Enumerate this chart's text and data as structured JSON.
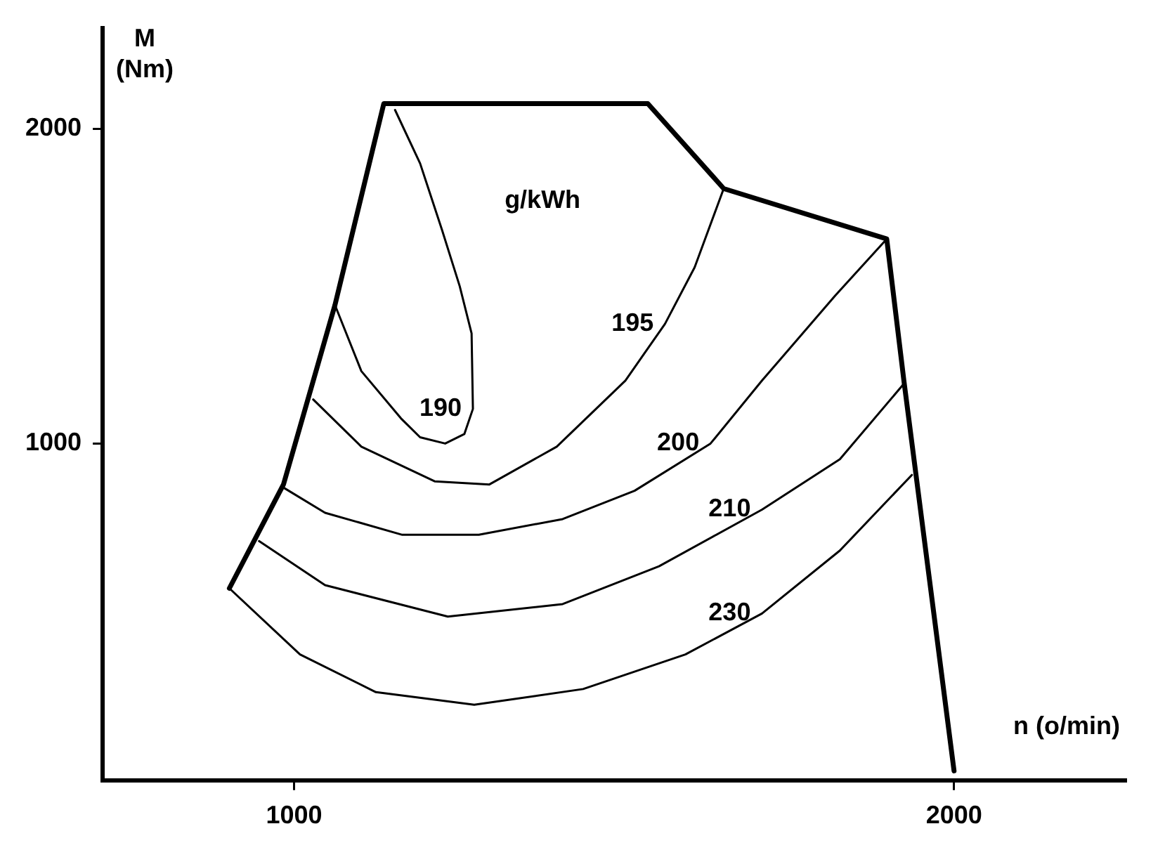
{
  "chart_data": {
    "type": "line",
    "xlabel": "n (o/min)",
    "ylabel": "M (Nm)",
    "xlim": [
      710,
      2260
    ],
    "ylim": [
      -70,
      2320
    ],
    "xticks": [
      1000,
      2000
    ],
    "yticks": [
      1000,
      2000
    ],
    "grid": false,
    "legend": false,
    "marker": "none",
    "line_style": "solid",
    "series": [
      {
        "color": "#000000",
        "x": [
          902,
          984,
          1062,
          1136,
          1536,
          1651,
          1898,
          1924,
          2000
        ],
        "values": [
          540,
          870,
          1440,
          2080,
          2080,
          1810,
          1650,
          1200,
          -40
        ]
      },
      {
        "name": "190",
        "color": "#000000",
        "x": [
          1153,
          1191,
          1224,
          1251,
          1269,
          1271,
          1258,
          1229,
          1191,
          1162,
          1102,
          1062
        ],
        "values": [
          2060,
          1890,
          1680,
          1500,
          1350,
          1110,
          1030,
          1000,
          1020,
          1080,
          1230,
          1440
        ]
      },
      {
        "name": "195",
        "color": "#000000",
        "x": [
          1029,
          1102,
          1213,
          1296,
          1398,
          1502,
          1562,
          1607,
          1651
        ],
        "values": [
          1140,
          990,
          880,
          870,
          990,
          1200,
          1380,
          1560,
          1810
        ]
      },
      {
        "name": "200",
        "color": "#000000",
        "x": [
          984,
          1047,
          1164,
          1280,
          1407,
          1516,
          1631,
          1709,
          1820,
          1898
        ],
        "values": [
          860,
          780,
          710,
          710,
          760,
          850,
          1000,
          1200,
          1470,
          1650
        ]
      },
      {
        "name": "210",
        "color": "#000000",
        "x": [
          947,
          1047,
          1233,
          1407,
          1553,
          1709,
          1827,
          1924
        ],
        "values": [
          690,
          550,
          450,
          490,
          610,
          790,
          950,
          1190
        ]
      },
      {
        "name": "230",
        "color": "#000000",
        "x": [
          902,
          1009,
          1124,
          1273,
          1438,
          1593,
          1709,
          1827,
          1936
        ],
        "values": [
          540,
          330,
          210,
          170,
          220,
          330,
          460,
          660,
          900
        ]
      }
    ],
    "annotations": [
      "g/kWh"
    ]
  }
}
